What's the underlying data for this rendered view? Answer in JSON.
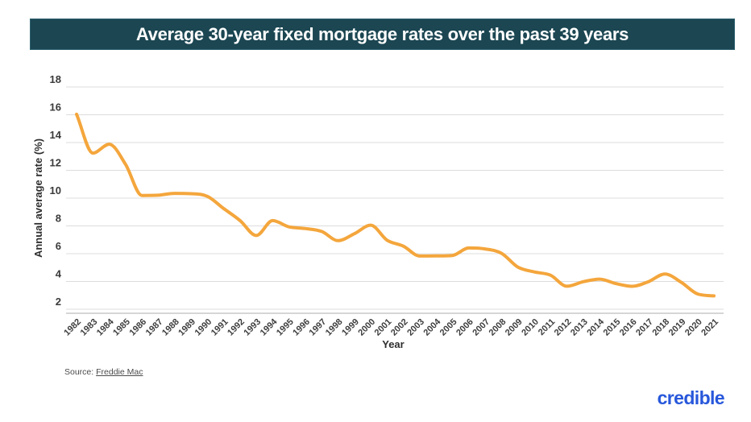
{
  "header": {
    "title": "Average 30-year fixed mortgage rates over the past 39 years",
    "background_color": "#1B4652",
    "text_color": "#FFFFFF"
  },
  "chart_data": {
    "type": "line",
    "title": "Average 30-year fixed mortgage rates over the past 39 years",
    "xlabel": "Year",
    "ylabel": "Annual average rate (%)",
    "categories": [
      "1982",
      "1983",
      "1984",
      "1985",
      "1986",
      "1987",
      "1988",
      "1989",
      "1990",
      "1991",
      "1992",
      "1993",
      "1994",
      "1995",
      "1996",
      "1997",
      "1998",
      "1999",
      "2000",
      "2001",
      "2002",
      "2003",
      "2004",
      "2005",
      "2006",
      "2007",
      "2008",
      "2009",
      "2010",
      "2011",
      "2012",
      "2013",
      "2014",
      "2015",
      "2016",
      "2017",
      "2018",
      "2019",
      "2020",
      "2021"
    ],
    "values": [
      16.04,
      13.24,
      13.88,
      12.43,
      10.19,
      10.21,
      10.34,
      10.32,
      10.13,
      9.25,
      8.39,
      7.31,
      8.38,
      7.93,
      7.81,
      7.6,
      6.94,
      7.44,
      8.05,
      6.97,
      6.54,
      5.83,
      5.84,
      5.87,
      6.41,
      6.34,
      6.03,
      5.04,
      4.69,
      4.45,
      3.66,
      3.98,
      4.17,
      3.85,
      3.65,
      3.99,
      4.54,
      3.94,
      3.1,
      2.96
    ],
    "yticks": [
      2,
      4,
      6,
      8,
      10,
      12,
      14,
      16,
      18
    ],
    "ylim": [
      2,
      18
    ],
    "grid": "horizontal",
    "legend": "none",
    "line_color": "#F4A63C"
  },
  "footer": {
    "source_label": "Source:",
    "source_link_text": "Freddie Mac",
    "brand_text": "credible",
    "brand_color": "#2757DB"
  }
}
